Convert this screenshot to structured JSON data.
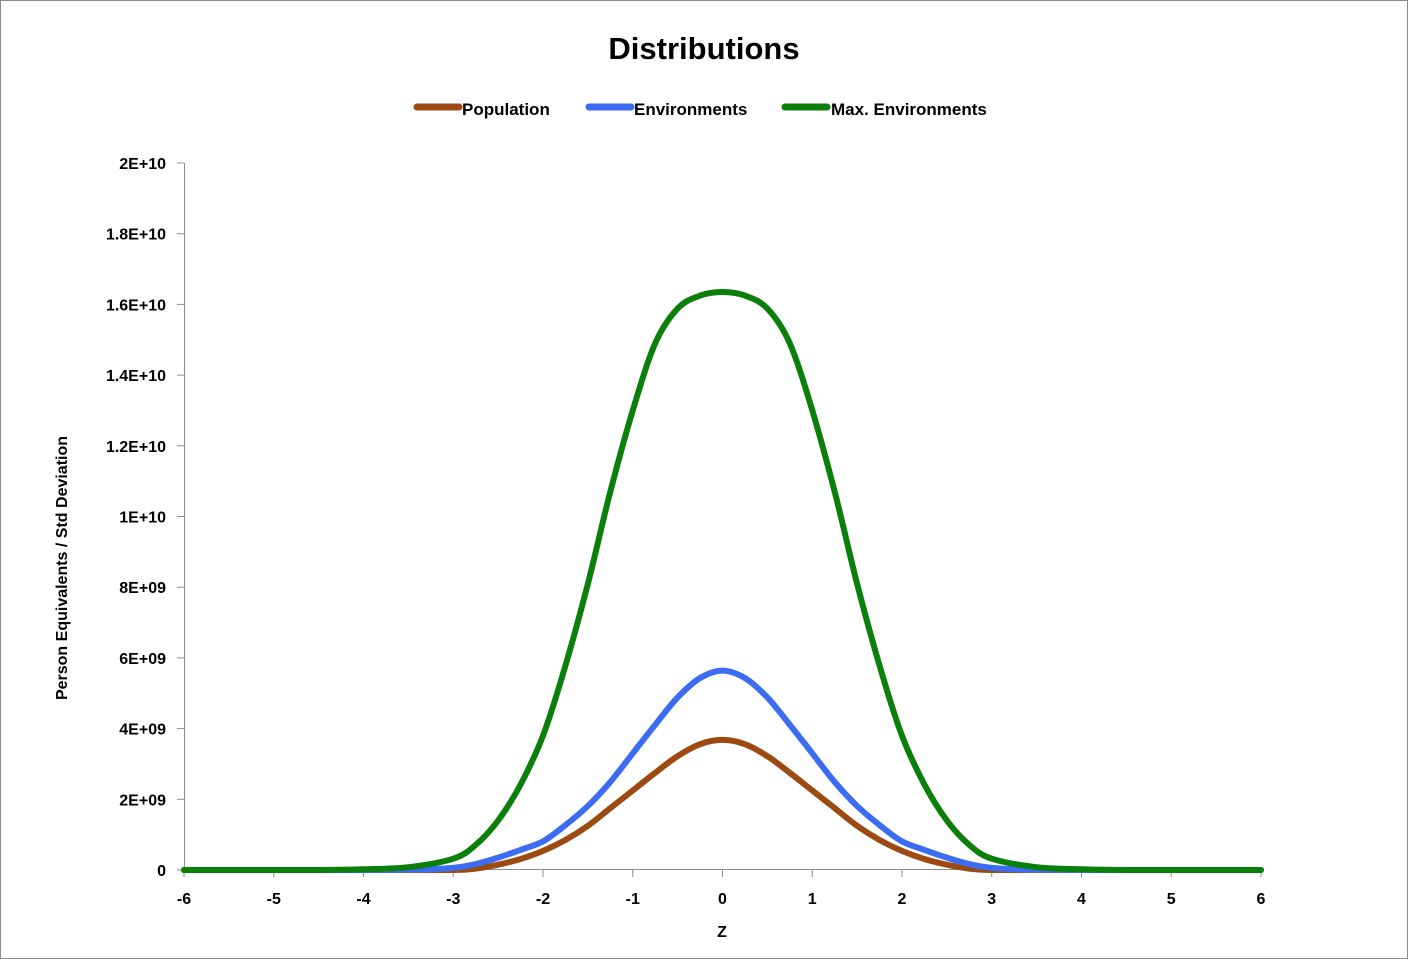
{
  "chart_data": {
    "type": "line",
    "title": "Distributions",
    "xlabel": "Z",
    "ylabel": "Person Equivalents / Std Deviation",
    "xlim": [
      -6,
      6
    ],
    "ylim": [
      0,
      20000000000
    ],
    "x_ticks": [
      -6,
      -5,
      -4,
      -3,
      -2,
      -1,
      0,
      1,
      2,
      3,
      4,
      5,
      6
    ],
    "x_tick_labels": [
      "-6",
      "-5",
      "-4",
      "-3",
      "-2",
      "-1",
      "0",
      "1",
      "2",
      "3",
      "4",
      "5",
      "6"
    ],
    "y_ticks": [
      0,
      2000000000,
      4000000000,
      6000000000,
      8000000000,
      10000000000,
      12000000000,
      14000000000,
      16000000000,
      18000000000,
      20000000000
    ],
    "y_tick_labels": [
      "0",
      "2E+09",
      "4E+09",
      "6E+09",
      "8E+09",
      "1E+10",
      "1.2E+10",
      "1.4E+10",
      "1.6E+10",
      "1.8E+10",
      "2E+10"
    ],
    "grid": false,
    "legend_position": "top",
    "x": [
      -6,
      -5.5,
      -5,
      -4.5,
      -4,
      -3.5,
      -3,
      -2.75,
      -2.5,
      -2.25,
      -2,
      -1.75,
      -1.5,
      -1.25,
      -1,
      -0.75,
      -0.5,
      -0.25,
      0,
      0.25,
      0.5,
      0.75,
      1,
      1.25,
      1.5,
      1.75,
      2,
      2.25,
      2.5,
      2.75,
      3,
      3.5,
      4,
      4.5,
      5,
      5.5,
      6
    ],
    "series": [
      {
        "name": "Population",
        "color": "#9c4a12",
        "values": [
          0,
          0,
          0,
          0,
          0,
          0,
          0,
          40000000,
          150000000,
          310000000,
          540000000,
          850000000,
          1250000000,
          1750000000,
          2250000000,
          2750000000,
          3220000000,
          3560000000,
          3680000000,
          3560000000,
          3220000000,
          2750000000,
          2250000000,
          1750000000,
          1250000000,
          850000000,
          540000000,
          310000000,
          150000000,
          40000000,
          0,
          0,
          0,
          0,
          0,
          0,
          0
        ]
      },
      {
        "name": "Environments",
        "color": "#3c6cf2",
        "values": [
          0,
          0,
          0,
          0,
          0,
          5000000,
          60000000,
          170000000,
          350000000,
          570000000,
          810000000,
          1270000000,
          1810000000,
          2490000000,
          3300000000,
          4110000000,
          4880000000,
          5430000000,
          5640000000,
          5430000000,
          4880000000,
          4110000000,
          3300000000,
          2490000000,
          1810000000,
          1270000000,
          810000000,
          570000000,
          350000000,
          170000000,
          60000000,
          5000000,
          0,
          0,
          0,
          0,
          0
        ]
      },
      {
        "name": "Max. Environments",
        "color": "#0a7f0a",
        "values": [
          0,
          0,
          0,
          0,
          20000000,
          80000000,
          320000000,
          710000000,
          1400000000,
          2420000000,
          3800000000,
          5780000000,
          8100000000,
          10700000000,
          13000000000,
          14900000000,
          15880000000,
          16250000000,
          16350000000,
          16250000000,
          15880000000,
          14900000000,
          13000000000,
          10700000000,
          8100000000,
          5780000000,
          3800000000,
          2420000000,
          1400000000,
          710000000,
          320000000,
          80000000,
          20000000,
          0,
          0,
          0,
          0
        ]
      }
    ]
  }
}
